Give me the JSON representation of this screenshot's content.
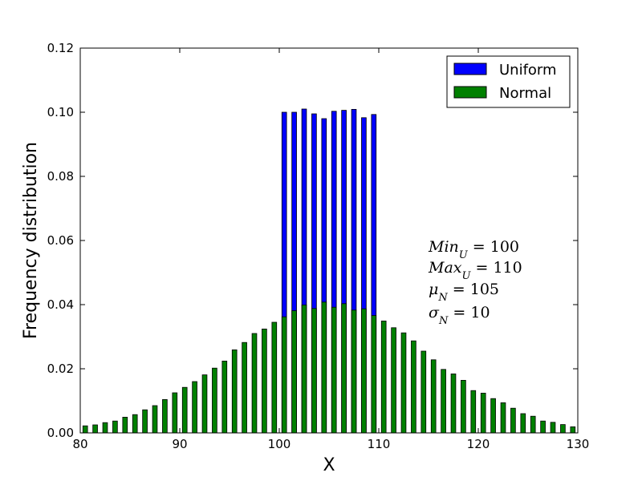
{
  "chart_data": {
    "type": "bar",
    "title": "",
    "xlabel": "X",
    "ylabel": "Frequency distribution",
    "xlim": [
      80,
      130
    ],
    "ylim": [
      0,
      0.12
    ],
    "x_ticks": [
      "80",
      "90",
      "100",
      "110",
      "120",
      "130"
    ],
    "y_ticks": [
      "0.00",
      "0.02",
      "0.04",
      "0.06",
      "0.08",
      "0.10",
      "0.12"
    ],
    "grid": false,
    "legend_position": "top-right",
    "series": [
      {
        "name": "Uniform",
        "color": "#0000ff",
        "x": [
          100.5,
          101.5,
          102.5,
          103.5,
          104.5,
          105.5,
          106.5,
          107.5,
          108.5,
          109.5
        ],
        "values": [
          0.1,
          0.1,
          0.101,
          0.0995,
          0.098,
          0.1003,
          0.1006,
          0.1009,
          0.0983,
          0.0993
        ]
      },
      {
        "name": "Normal",
        "color": "#008000",
        "x": [
          80.5,
          81.5,
          82.5,
          83.5,
          84.5,
          85.5,
          86.5,
          87.5,
          88.5,
          89.5,
          90.5,
          91.5,
          92.5,
          93.5,
          94.5,
          95.5,
          96.5,
          97.5,
          98.5,
          99.5,
          100.5,
          101.5,
          102.5,
          103.5,
          104.5,
          105.5,
          106.5,
          107.5,
          108.5,
          109.5,
          110.5,
          111.5,
          112.5,
          113.5,
          114.5,
          115.5,
          116.5,
          117.5,
          118.5,
          119.5,
          120.5,
          121.5,
          122.5,
          123.5,
          124.5,
          125.5,
          126.5,
          127.5,
          128.5,
          129.5
        ],
        "values": [
          0.0022,
          0.0025,
          0.0032,
          0.0037,
          0.0049,
          0.0057,
          0.0072,
          0.0085,
          0.0104,
          0.0125,
          0.0142,
          0.016,
          0.0181,
          0.0202,
          0.0224,
          0.0259,
          0.0282,
          0.031,
          0.0324,
          0.0345,
          0.0362,
          0.0381,
          0.0399,
          0.0388,
          0.0408,
          0.0392,
          0.0403,
          0.0383,
          0.0387,
          0.0366,
          0.0349,
          0.0328,
          0.0312,
          0.0287,
          0.0255,
          0.0228,
          0.0198,
          0.0184,
          0.0164,
          0.0132,
          0.0124,
          0.0107,
          0.0094,
          0.0077,
          0.006,
          0.0052,
          0.0037,
          0.0033,
          0.0026,
          0.0019
        ]
      }
    ],
    "annotations": [
      {
        "base": "Min",
        "sub": "U",
        "rest": " = 100"
      },
      {
        "base": "Max",
        "sub": "U",
        "rest": " = 110"
      },
      {
        "base": "μ",
        "sub": "N",
        "rest": " = 105"
      },
      {
        "base": "σ",
        "sub": "N",
        "rest": " = 10"
      }
    ]
  }
}
